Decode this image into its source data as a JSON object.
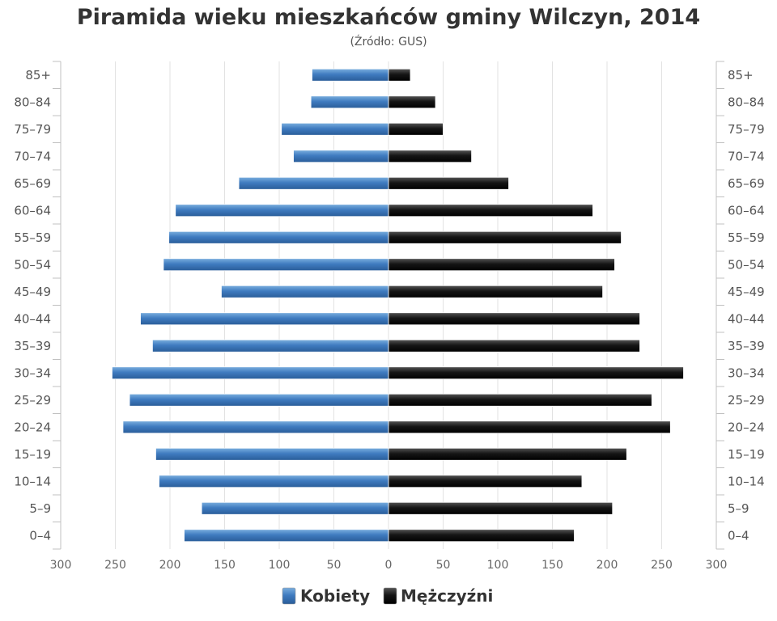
{
  "chart_data": {
    "type": "bar",
    "orientation": "horizontal-pyramid",
    "title": "Piramida wieku mieszkańców gminy Wilczyn, 2014",
    "subtitle": "(Źródło: GUS)",
    "categories": [
      "0-4",
      "5-9",
      "10-14",
      "15-19",
      "20-24",
      "25-29",
      "30-34",
      "35-39",
      "40-44",
      "45-49",
      "50-54",
      "55-59",
      "60-64",
      "65-69",
      "70-74",
      "75-79",
      "80-84",
      "85+"
    ],
    "series": [
      {
        "name": "Kobiety",
        "color": "#4f86c6",
        "values": [
          187,
          171,
          210,
          213,
          243,
          237,
          253,
          216,
          227,
          153,
          206,
          201,
          195,
          137,
          87,
          98,
          71,
          70
        ]
      },
      {
        "name": "Mężczyźni",
        "color": "#222222",
        "values": [
          170,
          205,
          177,
          218,
          258,
          241,
          270,
          230,
          230,
          196,
          207,
          213,
          187,
          110,
          76,
          50,
          43,
          20
        ]
      }
    ],
    "xlim": [
      -300,
      300
    ],
    "xticks": [
      300,
      250,
      200,
      150,
      100,
      50,
      0,
      50,
      100,
      150,
      200,
      250,
      300
    ],
    "grid": true,
    "legend": "bottom-center"
  }
}
